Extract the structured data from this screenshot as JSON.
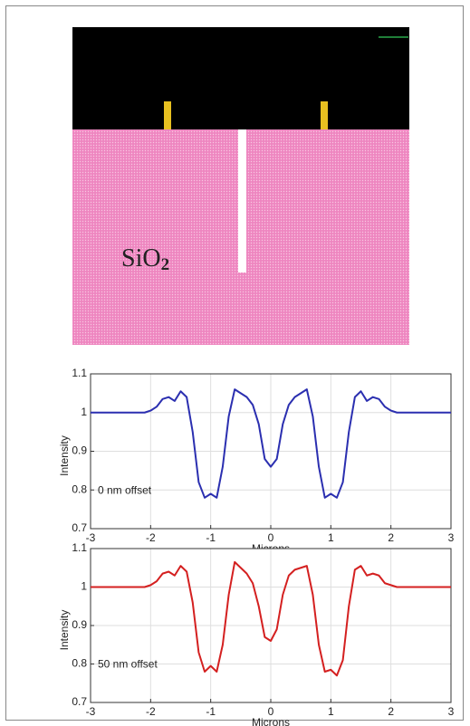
{
  "diagram": {
    "label": "SiO",
    "label_subscript": "2"
  },
  "chart_data": [
    {
      "type": "line",
      "xlabel": "Microns",
      "ylabel": "Intensity",
      "annotation": "0 nm offset",
      "x": [
        -3,
        -2.9,
        -2.8,
        -2.7,
        -2.6,
        -2.5,
        -2.4,
        -2.3,
        -2.2,
        -2.1,
        -2,
        -1.9,
        -1.8,
        -1.7,
        -1.6,
        -1.5,
        -1.4,
        -1.3,
        -1.2,
        -1.1,
        -1,
        -0.9,
        -0.8,
        -0.7,
        -0.6,
        -0.5,
        -0.4,
        -0.3,
        -0.2,
        -0.1,
        0,
        0.1,
        0.2,
        0.3,
        0.4,
        0.5,
        0.6,
        0.7,
        0.8,
        0.9,
        1,
        1.1,
        1.2,
        1.3,
        1.4,
        1.5,
        1.6,
        1.7,
        1.8,
        1.9,
        2,
        2.1,
        2.2,
        2.3,
        2.4,
        2.5,
        2.6,
        2.7,
        2.8,
        2.9,
        3
      ],
      "series": [
        {
          "color": "#2b2fb0",
          "values": [
            1,
            1,
            1,
            1,
            1,
            1,
            1,
            1,
            1,
            1,
            1.005,
            1.015,
            1.035,
            1.04,
            1.03,
            1.055,
            1.04,
            0.95,
            0.82,
            0.78,
            0.79,
            0.78,
            0.86,
            0.99,
            1.06,
            1.05,
            1.04,
            1.02,
            0.97,
            0.88,
            0.86,
            0.88,
            0.97,
            1.02,
            1.04,
            1.05,
            1.06,
            0.99,
            0.86,
            0.78,
            0.79,
            0.78,
            0.82,
            0.95,
            1.04,
            1.055,
            1.03,
            1.04,
            1.035,
            1.015,
            1.005,
            1,
            1,
            1,
            1,
            1,
            1,
            1,
            1,
            1,
            1
          ]
        }
      ],
      "xlim": [
        -3,
        3
      ],
      "xticks": [
        -3,
        -2,
        -1,
        0,
        1,
        2,
        3
      ],
      "ylim": [
        0.7,
        1.1
      ],
      "yticks": [
        0.7,
        0.8,
        0.9,
        1,
        1.1
      ],
      "grid": true
    },
    {
      "type": "line",
      "xlabel": "Microns",
      "ylabel": "Intensity",
      "annotation": "50 nm offset",
      "x": [
        -3,
        -2.9,
        -2.8,
        -2.7,
        -2.6,
        -2.5,
        -2.4,
        -2.3,
        -2.2,
        -2.1,
        -2,
        -1.9,
        -1.8,
        -1.7,
        -1.6,
        -1.5,
        -1.4,
        -1.3,
        -1.2,
        -1.1,
        -1,
        -0.9,
        -0.8,
        -0.7,
        -0.6,
        -0.5,
        -0.4,
        -0.3,
        -0.2,
        -0.1,
        0,
        0.1,
        0.2,
        0.3,
        0.4,
        0.5,
        0.6,
        0.7,
        0.8,
        0.9,
        1,
        1.1,
        1.2,
        1.3,
        1.4,
        1.5,
        1.6,
        1.7,
        1.8,
        1.9,
        2,
        2.1,
        2.2,
        2.3,
        2.4,
        2.5,
        2.6,
        2.7,
        2.8,
        2.9,
        3
      ],
      "series": [
        {
          "color": "#d42020",
          "values": [
            1,
            1,
            1,
            1,
            1,
            1,
            1,
            1,
            1,
            1,
            1.005,
            1.015,
            1.035,
            1.04,
            1.03,
            1.055,
            1.04,
            0.96,
            0.83,
            0.78,
            0.795,
            0.78,
            0.85,
            0.98,
            1.065,
            1.05,
            1.035,
            1.01,
            0.95,
            0.87,
            0.86,
            0.89,
            0.98,
            1.03,
            1.045,
            1.05,
            1.055,
            0.98,
            0.85,
            0.78,
            0.785,
            0.77,
            0.81,
            0.95,
            1.045,
            1.055,
            1.03,
            1.035,
            1.03,
            1.01,
            1.005,
            1,
            1,
            1,
            1,
            1,
            1,
            1,
            1,
            1,
            1
          ]
        }
      ],
      "xlim": [
        -3,
        3
      ],
      "xticks": [
        -3,
        -2,
        -1,
        0,
        1,
        2,
        3
      ],
      "ylim": [
        0.7,
        1.1
      ],
      "yticks": [
        0.7,
        0.8,
        0.9,
        1,
        1.1
      ],
      "grid": true
    }
  ]
}
